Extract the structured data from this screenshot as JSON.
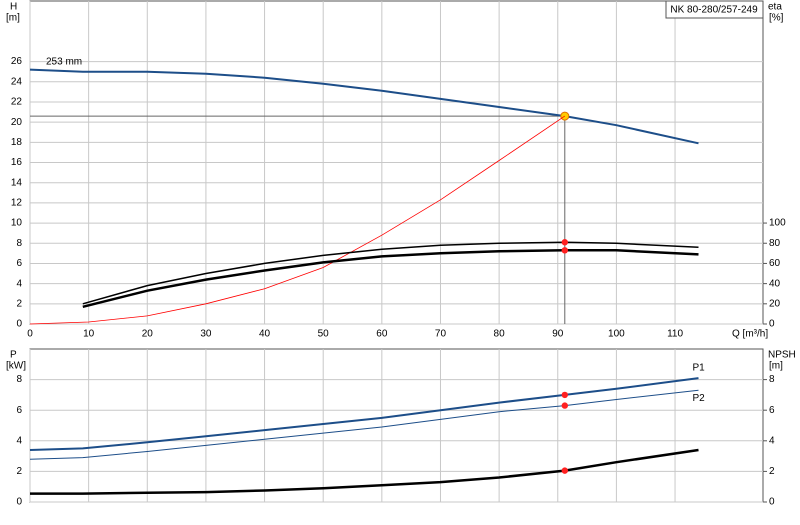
{
  "chart_data": [
    {
      "type": "line",
      "title": "NK 80-280/257-249",
      "ylabel": "H",
      "yunit": "[m]",
      "y2label": "eta",
      "y2unit": "[%]",
      "xlabel": "Q [m³/h]",
      "xlim": [
        0,
        125
      ],
      "xticks": [
        0,
        10,
        20,
        30,
        40,
        50,
        60,
        70,
        80,
        90,
        100,
        110
      ],
      "ylim": [
        0,
        32
      ],
      "yticks": [
        0,
        2,
        4,
        6,
        8,
        10,
        12,
        14,
        16,
        18,
        20,
        22,
        24,
        26
      ],
      "y2lim": [
        0,
        320
      ],
      "y2ticks": [
        0,
        20,
        40,
        60,
        80,
        100
      ],
      "grid": true,
      "duty_q": 91.2,
      "series": [
        {
          "name": "253 mm",
          "label_side": "start",
          "color": "#1d4e89",
          "line_width": 2,
          "marker_color": "#ffcc00",
          "crosshair": true,
          "x": [
            0,
            9,
            20,
            30,
            40,
            50,
            60,
            70,
            80,
            91.2,
            100,
            114
          ],
          "values": [
            25.2,
            25,
            25,
            24.8,
            24.4,
            23.8,
            23.1,
            22.3,
            21.5,
            20.6,
            19.7,
            17.9
          ]
        },
        {
          "color": "#ff0000",
          "line_width": 0.8,
          "x": [
            0,
            10,
            20,
            30,
            40,
            50,
            60,
            70,
            80,
            91.2
          ],
          "values": [
            0,
            0.2,
            0.8,
            2,
            3.5,
            5.6,
            8.8,
            12.3,
            16.2,
            20.6
          ]
        },
        {
          "axis": "y2",
          "color": "#000000",
          "line_width": 1.5,
          "marker_color": "#ff2020",
          "x": [
            9,
            20,
            30,
            40,
            50,
            60,
            70,
            80,
            91.2,
            100,
            114
          ],
          "values": [
            20,
            38,
            50,
            60,
            68,
            74,
            78,
            80,
            81,
            80,
            76
          ]
        },
        {
          "axis": "y2",
          "color": "#000000",
          "line_width": 2.5,
          "marker_color": "#ff2020",
          "x": [
            9,
            20,
            30,
            40,
            50,
            60,
            70,
            80,
            91.2,
            100,
            114
          ],
          "values": [
            17,
            33,
            44,
            53,
            61,
            67,
            70,
            72,
            73,
            73,
            69
          ]
        }
      ]
    },
    {
      "type": "line",
      "ylabel": "P",
      "yunit": "[kW]",
      "y2label": "NPSH",
      "y2unit": "[m]",
      "xlim": [
        0,
        125
      ],
      "xticks": [
        0,
        10,
        20,
        30,
        40,
        50,
        60,
        70,
        80,
        90,
        100,
        110
      ],
      "ylim": [
        0,
        10
      ],
      "yticks": [
        0,
        2,
        4,
        6,
        8
      ],
      "y2lim": [
        0,
        10
      ],
      "y2ticks": [
        0,
        2,
        4,
        6,
        8
      ],
      "grid": true,
      "duty_q": 91.2,
      "series": [
        {
          "name": "P1",
          "label_side": "end-above",
          "color": "#1d4e89",
          "line_width": 2,
          "marker_color": "#ff2020",
          "x": [
            0,
            9,
            20,
            30,
            40,
            50,
            60,
            70,
            80,
            91.2,
            100,
            114
          ],
          "values": [
            3.4,
            3.5,
            3.9,
            4.3,
            4.7,
            5.1,
            5.5,
            6,
            6.5,
            7,
            7.4,
            8.1
          ]
        },
        {
          "name": "P2",
          "label_side": "end-below",
          "color": "#1d4e89",
          "line_width": 1,
          "marker_color": "#ff2020",
          "x": [
            0,
            9,
            20,
            30,
            40,
            50,
            60,
            70,
            80,
            91.2,
            100,
            114
          ],
          "values": [
            2.8,
            2.9,
            3.3,
            3.7,
            4.1,
            4.5,
            4.9,
            5.4,
            5.9,
            6.3,
            6.7,
            7.3
          ]
        },
        {
          "axis": "y2",
          "color": "#000000",
          "line_width": 2.5,
          "marker_color": "#ff2020",
          "x": [
            0,
            9,
            20,
            30,
            40,
            50,
            60,
            70,
            80,
            91.2,
            100,
            114
          ],
          "values": [
            0.55,
            0.55,
            0.6,
            0.65,
            0.75,
            0.9,
            1.1,
            1.3,
            1.6,
            2.05,
            2.6,
            3.4
          ]
        }
      ]
    }
  ]
}
